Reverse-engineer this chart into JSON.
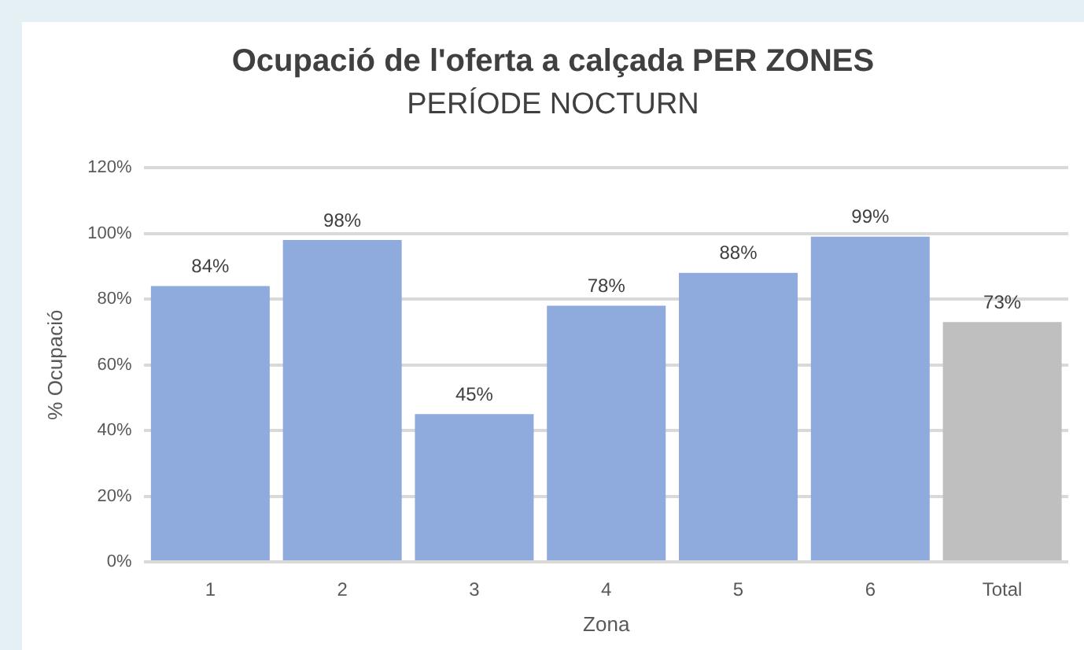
{
  "chart_data": {
    "type": "bar",
    "title": "Ocupació de l'oferta a calçada PER ZONES",
    "subtitle": "PERÍODE NOCTURN",
    "xlabel": "Zona",
    "ylabel": "% Ocupació",
    "categories": [
      "1",
      "2",
      "3",
      "4",
      "5",
      "6",
      "Total"
    ],
    "values": [
      84,
      98,
      45,
      78,
      88,
      99,
      73
    ],
    "colors": [
      "#8faadc",
      "#8faadc",
      "#8faadc",
      "#8faadc",
      "#8faadc",
      "#8faadc",
      "#bfbfbf"
    ],
    "value_labels": [
      "84%",
      "98%",
      "45%",
      "78%",
      "88%",
      "99%",
      "73%"
    ],
    "ylim": [
      0,
      120
    ],
    "yticks": [
      {
        "value": 0,
        "label": "0%"
      },
      {
        "value": 20,
        "label": "20%"
      },
      {
        "value": 40,
        "label": "40%"
      },
      {
        "value": 60,
        "label": "60%"
      },
      {
        "value": 80,
        "label": "80%"
      },
      {
        "value": 100,
        "label": "100%"
      },
      {
        "value": 120,
        "label": "120%"
      }
    ],
    "grid": "y",
    "legend": false
  }
}
